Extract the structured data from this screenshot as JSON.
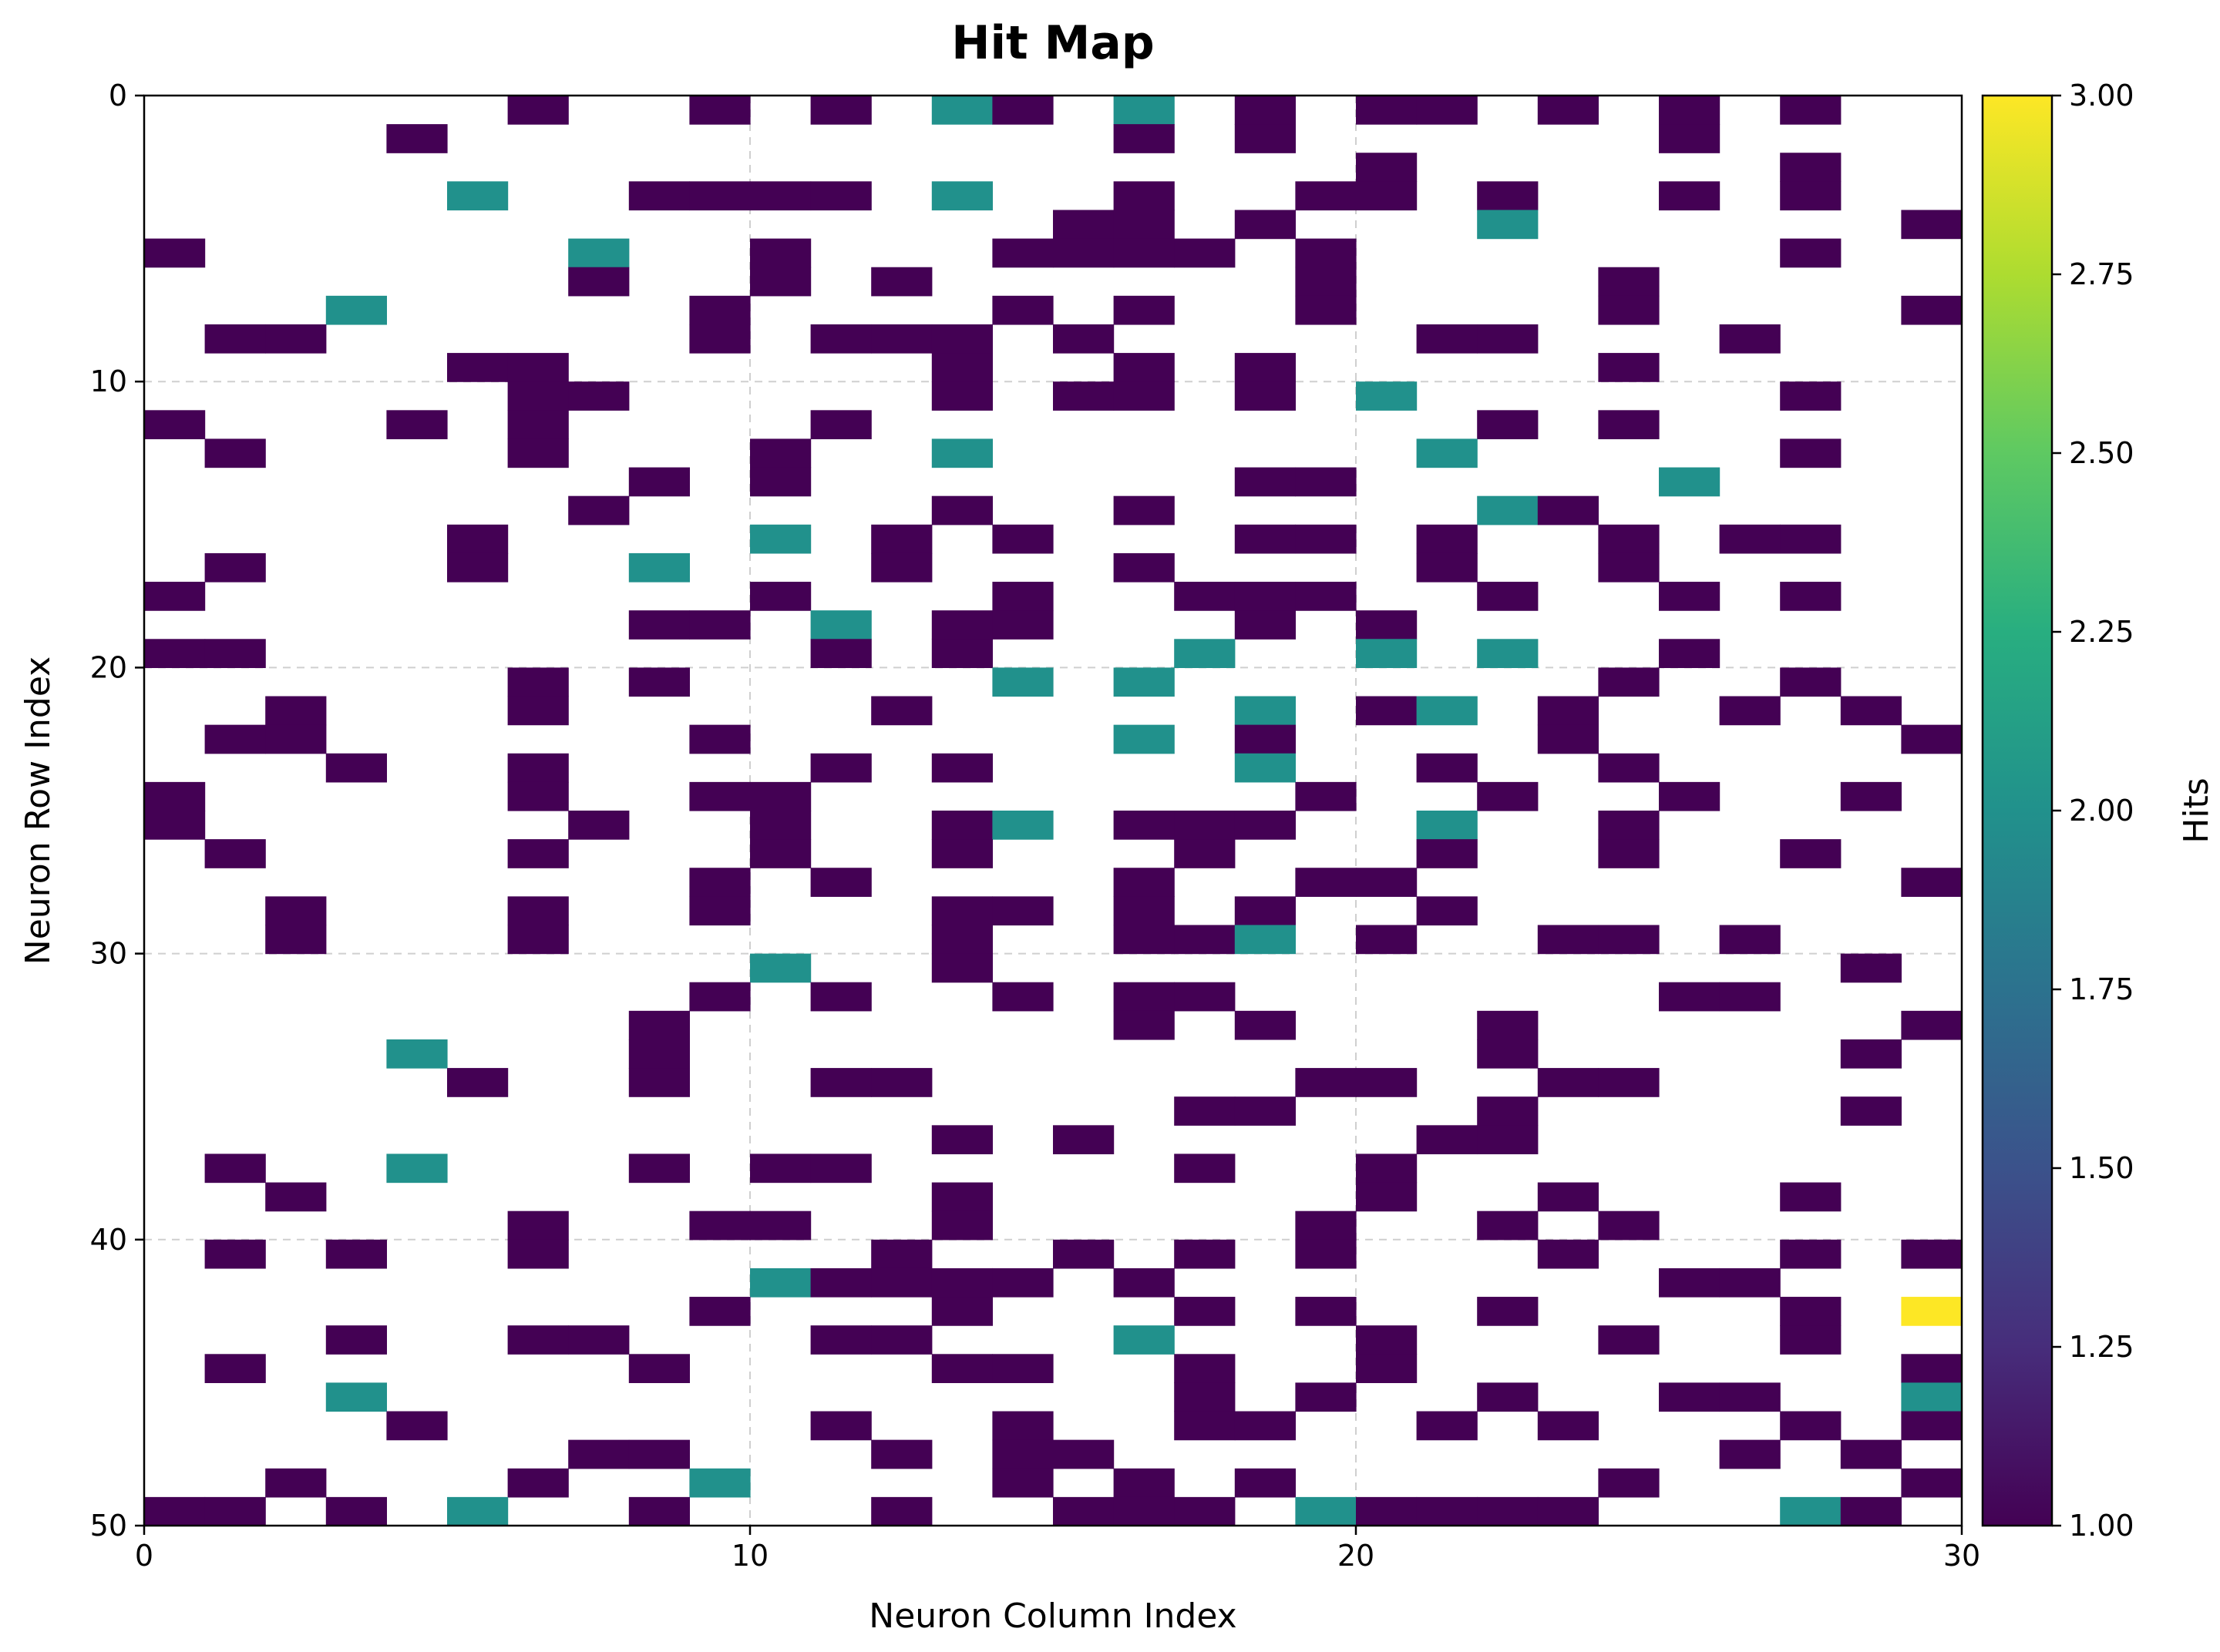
{
  "chart_data": {
    "type": "heatmap",
    "title": "Hit Map",
    "xlabel": "Neuron Column Index",
    "ylabel": "Neuron Row Index",
    "xlim": [
      0,
      30
    ],
    "ylim": [
      50,
      0
    ],
    "x_ticks": [
      0,
      10,
      20,
      30
    ],
    "y_ticks": [
      0,
      10,
      20,
      30,
      40,
      50
    ],
    "grid": true,
    "colormap": "viridis",
    "colorbar": {
      "label": "Hits",
      "min": 1.0,
      "max": 3.0,
      "ticks": [
        "1.00",
        "1.25",
        "1.50",
        "1.75",
        "2.00",
        "2.25",
        "2.50",
        "2.75",
        "3.00"
      ]
    },
    "colors": {
      "one_hit": "#440154",
      "two_hits": "#21918c",
      "three_hits": "#fde725"
    },
    "rows": 50,
    "cols": 30,
    "cells": [
      [
        0,
        6,
        1
      ],
      [
        0,
        9,
        1
      ],
      [
        0,
        11,
        1
      ],
      [
        0,
        13,
        2
      ],
      [
        0,
        14,
        1
      ],
      [
        0,
        16,
        2
      ],
      [
        0,
        18,
        1
      ],
      [
        0,
        20,
        1
      ],
      [
        0,
        21,
        1
      ],
      [
        0,
        23,
        1
      ],
      [
        0,
        25,
        1
      ],
      [
        0,
        27,
        1
      ],
      [
        1,
        4,
        1
      ],
      [
        1,
        16,
        1
      ],
      [
        1,
        18,
        1
      ],
      [
        1,
        25,
        1
      ],
      [
        2,
        20,
        1
      ],
      [
        2,
        27,
        1
      ],
      [
        3,
        5,
        2
      ],
      [
        3,
        8,
        1
      ],
      [
        3,
        9,
        1
      ],
      [
        3,
        10,
        1
      ],
      [
        3,
        11,
        1
      ],
      [
        3,
        13,
        2
      ],
      [
        3,
        16,
        1
      ],
      [
        3,
        19,
        1
      ],
      [
        3,
        20,
        1
      ],
      [
        3,
        22,
        1
      ],
      [
        3,
        25,
        1
      ],
      [
        3,
        27,
        1
      ],
      [
        4,
        15,
        1
      ],
      [
        4,
        16,
        1
      ],
      [
        4,
        18,
        1
      ],
      [
        4,
        22,
        2
      ],
      [
        4,
        29,
        1
      ],
      [
        5,
        0,
        1
      ],
      [
        5,
        7,
        2
      ],
      [
        5,
        10,
        1
      ],
      [
        5,
        14,
        1
      ],
      [
        5,
        15,
        1
      ],
      [
        5,
        16,
        1
      ],
      [
        5,
        17,
        1
      ],
      [
        5,
        19,
        1
      ],
      [
        5,
        27,
        1
      ],
      [
        6,
        7,
        1
      ],
      [
        6,
        10,
        1
      ],
      [
        6,
        12,
        1
      ],
      [
        6,
        19,
        1
      ],
      [
        6,
        24,
        1
      ],
      [
        7,
        3,
        2
      ],
      [
        7,
        9,
        1
      ],
      [
        7,
        14,
        1
      ],
      [
        7,
        16,
        1
      ],
      [
        7,
        19,
        1
      ],
      [
        7,
        24,
        1
      ],
      [
        7,
        29,
        1
      ],
      [
        8,
        1,
        1
      ],
      [
        8,
        2,
        1
      ],
      [
        8,
        9,
        1
      ],
      [
        8,
        11,
        1
      ],
      [
        8,
        12,
        1
      ],
      [
        8,
        13,
        1
      ],
      [
        8,
        15,
        1
      ],
      [
        8,
        21,
        1
      ],
      [
        8,
        22,
        1
      ],
      [
        8,
        26,
        1
      ],
      [
        9,
        5,
        1
      ],
      [
        9,
        6,
        1
      ],
      [
        9,
        13,
        1
      ],
      [
        9,
        16,
        1
      ],
      [
        9,
        18,
        1
      ],
      [
        9,
        24,
        1
      ],
      [
        10,
        6,
        1
      ],
      [
        10,
        7,
        1
      ],
      [
        10,
        13,
        1
      ],
      [
        10,
        15,
        1
      ],
      [
        10,
        16,
        1
      ],
      [
        10,
        18,
        1
      ],
      [
        10,
        20,
        2
      ],
      [
        10,
        27,
        1
      ],
      [
        11,
        0,
        1
      ],
      [
        11,
        4,
        1
      ],
      [
        11,
        6,
        1
      ],
      [
        11,
        11,
        1
      ],
      [
        11,
        22,
        1
      ],
      [
        11,
        24,
        1
      ],
      [
        12,
        1,
        1
      ],
      [
        12,
        6,
        1
      ],
      [
        12,
        10,
        1
      ],
      [
        12,
        13,
        2
      ],
      [
        12,
        21,
        2
      ],
      [
        12,
        27,
        1
      ],
      [
        13,
        8,
        1
      ],
      [
        13,
        10,
        1
      ],
      [
        13,
        18,
        1
      ],
      [
        13,
        19,
        1
      ],
      [
        13,
        25,
        2
      ],
      [
        14,
        7,
        1
      ],
      [
        14,
        13,
        1
      ],
      [
        14,
        16,
        1
      ],
      [
        14,
        22,
        2
      ],
      [
        14,
        23,
        1
      ],
      [
        15,
        5,
        1
      ],
      [
        15,
        10,
        2
      ],
      [
        15,
        12,
        1
      ],
      [
        15,
        14,
        1
      ],
      [
        15,
        18,
        1
      ],
      [
        15,
        19,
        1
      ],
      [
        15,
        21,
        1
      ],
      [
        15,
        24,
        1
      ],
      [
        15,
        26,
        1
      ],
      [
        15,
        27,
        1
      ],
      [
        16,
        1,
        1
      ],
      [
        16,
        5,
        1
      ],
      [
        16,
        8,
        2
      ],
      [
        16,
        12,
        1
      ],
      [
        16,
        16,
        1
      ],
      [
        16,
        21,
        1
      ],
      [
        16,
        24,
        1
      ],
      [
        17,
        0,
        1
      ],
      [
        17,
        10,
        1
      ],
      [
        17,
        14,
        1
      ],
      [
        17,
        17,
        1
      ],
      [
        17,
        18,
        1
      ],
      [
        17,
        19,
        1
      ],
      [
        17,
        22,
        1
      ],
      [
        17,
        25,
        1
      ],
      [
        17,
        27,
        1
      ],
      [
        18,
        8,
        1
      ],
      [
        18,
        9,
        1
      ],
      [
        18,
        11,
        2
      ],
      [
        18,
        13,
        1
      ],
      [
        18,
        14,
        1
      ],
      [
        18,
        18,
        1
      ],
      [
        18,
        20,
        1
      ],
      [
        19,
        0,
        1
      ],
      [
        19,
        1,
        1
      ],
      [
        19,
        11,
        1
      ],
      [
        19,
        13,
        1
      ],
      [
        19,
        17,
        2
      ],
      [
        19,
        20,
        2
      ],
      [
        19,
        22,
        2
      ],
      [
        19,
        25,
        1
      ],
      [
        20,
        6,
        1
      ],
      [
        20,
        8,
        1
      ],
      [
        20,
        14,
        2
      ],
      [
        20,
        16,
        2
      ],
      [
        20,
        24,
        1
      ],
      [
        20,
        27,
        1
      ],
      [
        21,
        2,
        1
      ],
      [
        21,
        6,
        1
      ],
      [
        21,
        12,
        1
      ],
      [
        21,
        18,
        2
      ],
      [
        21,
        20,
        1
      ],
      [
        21,
        21,
        2
      ],
      [
        21,
        23,
        1
      ],
      [
        21,
        26,
        1
      ],
      [
        21,
        28,
        1
      ],
      [
        22,
        1,
        1
      ],
      [
        22,
        2,
        1
      ],
      [
        22,
        9,
        1
      ],
      [
        22,
        16,
        2
      ],
      [
        22,
        18,
        1
      ],
      [
        22,
        23,
        1
      ],
      [
        22,
        29,
        1
      ],
      [
        23,
        3,
        1
      ],
      [
        23,
        6,
        1
      ],
      [
        23,
        11,
        1
      ],
      [
        23,
        13,
        1
      ],
      [
        23,
        18,
        2
      ],
      [
        23,
        21,
        1
      ],
      [
        23,
        24,
        1
      ],
      [
        24,
        0,
        1
      ],
      [
        24,
        6,
        1
      ],
      [
        24,
        9,
        1
      ],
      [
        24,
        10,
        1
      ],
      [
        24,
        19,
        1
      ],
      [
        24,
        22,
        1
      ],
      [
        24,
        25,
        1
      ],
      [
        24,
        28,
        1
      ],
      [
        25,
        0,
        1
      ],
      [
        25,
        7,
        1
      ],
      [
        25,
        10,
        1
      ],
      [
        25,
        13,
        1
      ],
      [
        25,
        14,
        2
      ],
      [
        25,
        16,
        1
      ],
      [
        25,
        17,
        1
      ],
      [
        25,
        18,
        1
      ],
      [
        25,
        21,
        2
      ],
      [
        25,
        24,
        1
      ],
      [
        26,
        1,
        1
      ],
      [
        26,
        6,
        1
      ],
      [
        26,
        10,
        1
      ],
      [
        26,
        13,
        1
      ],
      [
        26,
        17,
        1
      ],
      [
        26,
        21,
        1
      ],
      [
        26,
        24,
        1
      ],
      [
        26,
        27,
        1
      ],
      [
        27,
        9,
        1
      ],
      [
        27,
        11,
        1
      ],
      [
        27,
        16,
        1
      ],
      [
        27,
        19,
        1
      ],
      [
        27,
        20,
        1
      ],
      [
        27,
        29,
        1
      ],
      [
        28,
        2,
        1
      ],
      [
        28,
        6,
        1
      ],
      [
        28,
        9,
        1
      ],
      [
        28,
        13,
        1
      ],
      [
        28,
        14,
        1
      ],
      [
        28,
        16,
        1
      ],
      [
        28,
        18,
        1
      ],
      [
        28,
        21,
        1
      ],
      [
        29,
        2,
        1
      ],
      [
        29,
        6,
        1
      ],
      [
        29,
        13,
        1
      ],
      [
        29,
        16,
        1
      ],
      [
        29,
        17,
        1
      ],
      [
        29,
        18,
        2
      ],
      [
        29,
        20,
        1
      ],
      [
        29,
        23,
        1
      ],
      [
        29,
        24,
        1
      ],
      [
        29,
        26,
        1
      ],
      [
        30,
        10,
        2
      ],
      [
        30,
        13,
        1
      ],
      [
        30,
        28,
        1
      ],
      [
        31,
        9,
        1
      ],
      [
        31,
        11,
        1
      ],
      [
        31,
        14,
        1
      ],
      [
        31,
        16,
        1
      ],
      [
        31,
        17,
        1
      ],
      [
        31,
        25,
        1
      ],
      [
        31,
        26,
        1
      ],
      [
        32,
        8,
        1
      ],
      [
        32,
        16,
        1
      ],
      [
        32,
        18,
        1
      ],
      [
        32,
        22,
        1
      ],
      [
        32,
        29,
        1
      ],
      [
        33,
        4,
        2
      ],
      [
        33,
        8,
        1
      ],
      [
        33,
        22,
        1
      ],
      [
        33,
        28,
        1
      ],
      [
        34,
        5,
        1
      ],
      [
        34,
        8,
        1
      ],
      [
        34,
        11,
        1
      ],
      [
        34,
        12,
        1
      ],
      [
        34,
        19,
        1
      ],
      [
        34,
        20,
        1
      ],
      [
        34,
        23,
        1
      ],
      [
        34,
        24,
        1
      ],
      [
        35,
        17,
        1
      ],
      [
        35,
        18,
        1
      ],
      [
        35,
        22,
        1
      ],
      [
        35,
        28,
        1
      ],
      [
        36,
        13,
        1
      ],
      [
        36,
        15,
        1
      ],
      [
        36,
        21,
        1
      ],
      [
        36,
        22,
        1
      ],
      [
        37,
        1,
        1
      ],
      [
        37,
        4,
        2
      ],
      [
        37,
        8,
        1
      ],
      [
        37,
        10,
        1
      ],
      [
        37,
        11,
        1
      ],
      [
        37,
        17,
        1
      ],
      [
        37,
        20,
        1
      ],
      [
        38,
        2,
        1
      ],
      [
        38,
        13,
        1
      ],
      [
        38,
        20,
        1
      ],
      [
        38,
        23,
        1
      ],
      [
        38,
        27,
        1
      ],
      [
        39,
        6,
        1
      ],
      [
        39,
        9,
        1
      ],
      [
        39,
        10,
        1
      ],
      [
        39,
        13,
        1
      ],
      [
        39,
        19,
        1
      ],
      [
        39,
        22,
        1
      ],
      [
        39,
        24,
        1
      ],
      [
        40,
        1,
        1
      ],
      [
        40,
        3,
        1
      ],
      [
        40,
        6,
        1
      ],
      [
        40,
        12,
        1
      ],
      [
        40,
        15,
        1
      ],
      [
        40,
        17,
        1
      ],
      [
        40,
        19,
        1
      ],
      [
        40,
        23,
        1
      ],
      [
        40,
        27,
        1
      ],
      [
        40,
        29,
        1
      ],
      [
        41,
        10,
        2
      ],
      [
        41,
        11,
        1
      ],
      [
        41,
        12,
        1
      ],
      [
        41,
        13,
        1
      ],
      [
        41,
        14,
        1
      ],
      [
        41,
        16,
        1
      ],
      [
        41,
        25,
        1
      ],
      [
        41,
        26,
        1
      ],
      [
        42,
        9,
        1
      ],
      [
        42,
        13,
        1
      ],
      [
        42,
        17,
        1
      ],
      [
        42,
        19,
        1
      ],
      [
        42,
        22,
        1
      ],
      [
        42,
        27,
        1
      ],
      [
        42,
        29,
        3
      ],
      [
        43,
        3,
        1
      ],
      [
        43,
        6,
        1
      ],
      [
        43,
        7,
        1
      ],
      [
        43,
        11,
        1
      ],
      [
        43,
        12,
        1
      ],
      [
        43,
        16,
        2
      ],
      [
        43,
        20,
        1
      ],
      [
        43,
        24,
        1
      ],
      [
        43,
        27,
        1
      ],
      [
        44,
        1,
        1
      ],
      [
        44,
        8,
        1
      ],
      [
        44,
        13,
        1
      ],
      [
        44,
        14,
        1
      ],
      [
        44,
        17,
        1
      ],
      [
        44,
        20,
        1
      ],
      [
        44,
        29,
        1
      ],
      [
        45,
        3,
        2
      ],
      [
        45,
        17,
        1
      ],
      [
        45,
        19,
        1
      ],
      [
        45,
        22,
        1
      ],
      [
        45,
        25,
        1
      ],
      [
        45,
        26,
        1
      ],
      [
        45,
        29,
        2
      ],
      [
        46,
        4,
        1
      ],
      [
        46,
        11,
        1
      ],
      [
        46,
        14,
        1
      ],
      [
        46,
        17,
        1
      ],
      [
        46,
        18,
        1
      ],
      [
        46,
        21,
        1
      ],
      [
        46,
        23,
        1
      ],
      [
        46,
        27,
        1
      ],
      [
        46,
        29,
        1
      ],
      [
        47,
        7,
        1
      ],
      [
        47,
        8,
        1
      ],
      [
        47,
        12,
        1
      ],
      [
        47,
        14,
        1
      ],
      [
        47,
        15,
        1
      ],
      [
        47,
        26,
        1
      ],
      [
        47,
        28,
        1
      ],
      [
        48,
        2,
        1
      ],
      [
        48,
        6,
        1
      ],
      [
        48,
        9,
        2
      ],
      [
        48,
        14,
        1
      ],
      [
        48,
        16,
        1
      ],
      [
        48,
        18,
        1
      ],
      [
        48,
        24,
        1
      ],
      [
        48,
        29,
        1
      ],
      [
        49,
        0,
        1
      ],
      [
        49,
        1,
        1
      ],
      [
        49,
        3,
        1
      ],
      [
        49,
        5,
        2
      ],
      [
        49,
        8,
        1
      ],
      [
        49,
        12,
        1
      ],
      [
        49,
        15,
        1
      ],
      [
        49,
        16,
        1
      ],
      [
        49,
        17,
        1
      ],
      [
        49,
        19,
        2
      ],
      [
        49,
        20,
        1
      ],
      [
        49,
        21,
        1
      ],
      [
        49,
        22,
        1
      ],
      [
        49,
        23,
        1
      ],
      [
        49,
        27,
        2
      ],
      [
        49,
        28,
        1
      ]
    ]
  }
}
